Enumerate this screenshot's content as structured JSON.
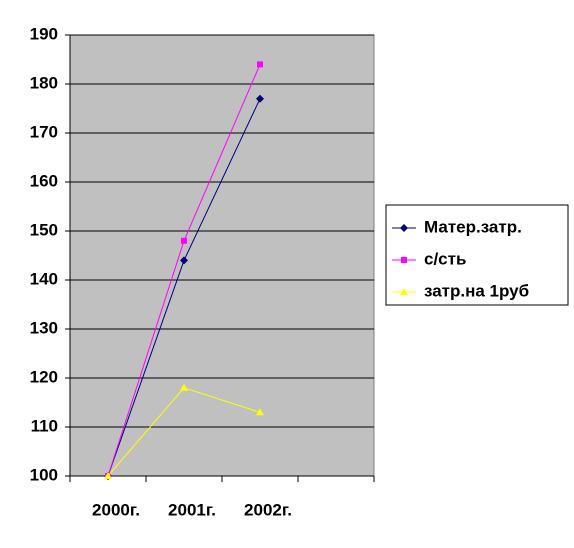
{
  "chart_data": {
    "type": "line",
    "categories": [
      "2000г.",
      "2001г.",
      "2002г.",
      null
    ],
    "series": [
      {
        "name": "Матер.затр.",
        "color": "#000080",
        "marker": "diamond",
        "values": [
          100,
          144,
          177,
          null
        ]
      },
      {
        "name": "с/сть",
        "color": "#ff00ff",
        "marker": "square",
        "values": [
          100,
          148,
          184,
          null
        ]
      },
      {
        "name": "затр.на 1руб",
        "color": "#ffff00",
        "marker": "triangle",
        "values": [
          100,
          118,
          113,
          null
        ]
      }
    ],
    "ylim": [
      100,
      190
    ],
    "yticks": [
      100,
      110,
      120,
      130,
      140,
      150,
      160,
      170,
      180,
      190
    ],
    "grid": true,
    "legend": "right"
  }
}
